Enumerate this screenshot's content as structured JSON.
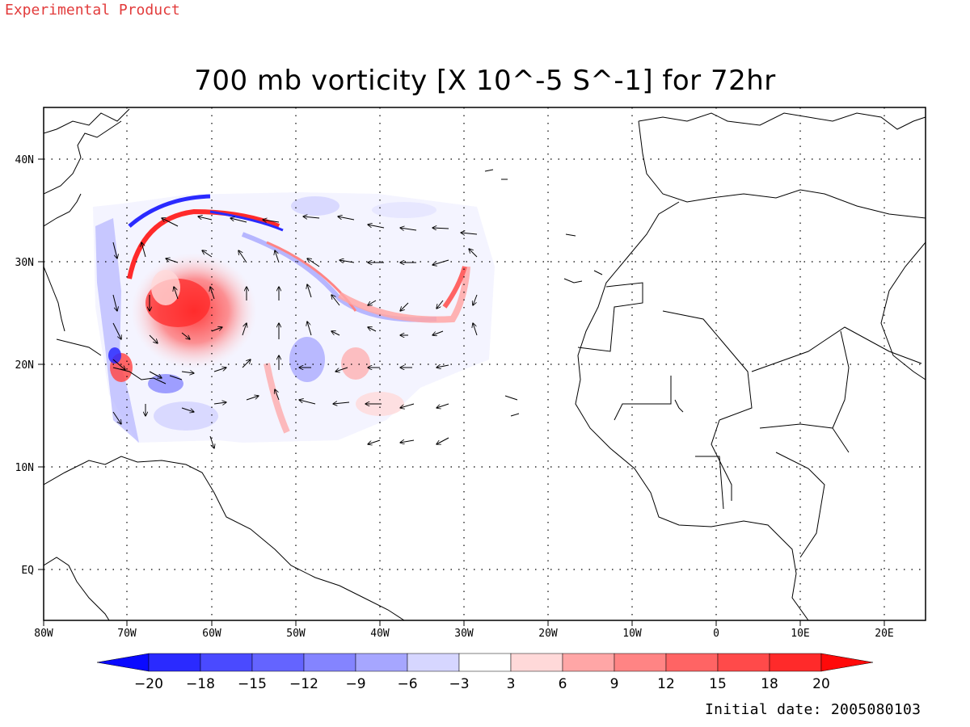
{
  "banner": "Experimental Product",
  "title": "700 mb vorticity [X 10^-5 S^-1] for 72hr",
  "initial_date_text": "Initial date: 2005080103",
  "lon_labels": [
    "80W",
    "70W",
    "60W",
    "50W",
    "40W",
    "30W",
    "20W",
    "10W",
    "0",
    "10E",
    "20E"
  ],
  "lat_labels": [
    "40N",
    "30N",
    "20N",
    "10N",
    "EQ"
  ],
  "colorbar": {
    "labels": [
      "-20",
      "-18",
      "-15",
      "-12",
      "-9",
      "-6",
      "-3",
      "3",
      "6",
      "9",
      "12",
      "15",
      "18",
      "20"
    ],
    "colors": [
      "#2a2aff",
      "#4a4aff",
      "#6464ff",
      "#8484ff",
      "#a6a6ff",
      "#d6d6ff",
      "#ffffff",
      "#ffd9d9",
      "#ffa6a6",
      "#ff8484",
      "#ff6464",
      "#ff4a4a",
      "#ff2a2a"
    ],
    "min_arrow_color": "#0a0aff",
    "max_arrow_color": "#ff0a0a"
  },
  "map_extent": {
    "lon_range": [
      -80,
      25
    ],
    "lat_range": [
      -5,
      45
    ]
  },
  "gridlines": "dotted"
}
